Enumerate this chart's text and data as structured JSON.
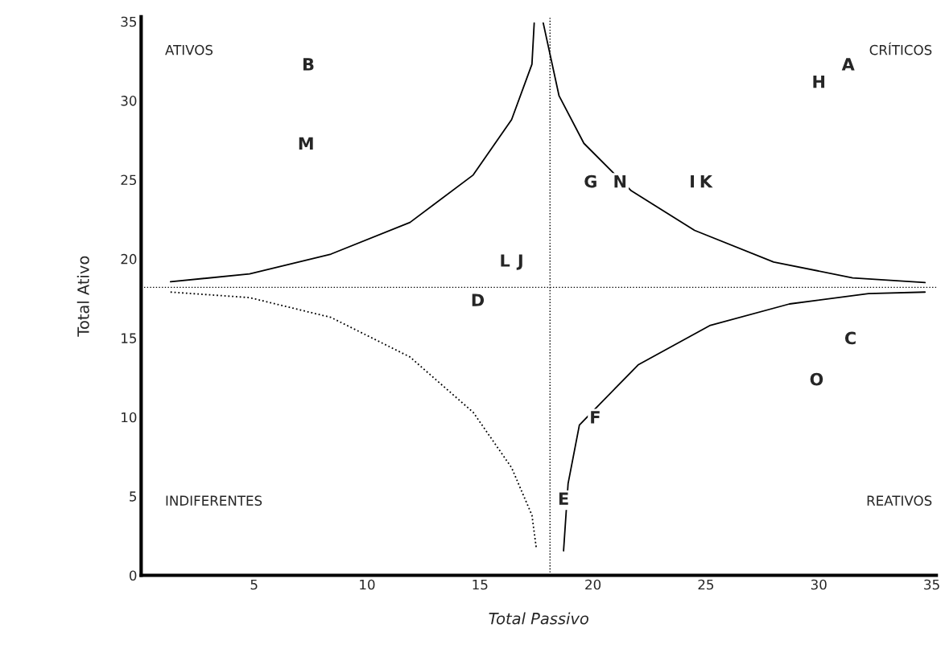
{
  "chart_data": {
    "type": "line",
    "xlabel": "Total Passivo",
    "ylabel": "Total Ativo",
    "xlim": [
      0,
      35.2
    ],
    "ylim": [
      0,
      35.3
    ],
    "xticks": [
      5,
      10,
      15,
      20,
      25,
      30,
      35
    ],
    "yticks": [
      0,
      5,
      10,
      15,
      20,
      25,
      30,
      35
    ],
    "grid": false,
    "legend": false,
    "series": [
      {
        "color": "#000000",
        "line_style": "solid",
        "x": [
          1.3,
          4.8,
          8.4,
          11.9,
          14.7,
          16.4,
          17.3,
          17.4
        ],
        "values": [
          18.55,
          19.05,
          20.3,
          22.3,
          25.3,
          28.8,
          32.3,
          34.9
        ]
      },
      {
        "color": "#000000",
        "line_style": "solid",
        "x": [
          17.8,
          18.5,
          19.6,
          21.7,
          24.5,
          28,
          31.5,
          34.7
        ],
        "values": [
          34.9,
          30.3,
          27.3,
          24.3,
          21.8,
          19.8,
          18.8,
          18.5
        ]
      },
      {
        "color": "#000000",
        "line_style": "solid",
        "x": [
          18.7,
          18.9,
          19.4,
          22,
          25.2,
          28.7,
          32.2,
          34.7
        ],
        "values": [
          1.55,
          5.8,
          9.5,
          13.3,
          15.8,
          17.15,
          17.8,
          17.9
        ]
      },
      {
        "color": "#000000",
        "line_style": "dotted",
        "x": [
          1.3,
          4.8,
          8.4,
          11.9,
          14.7,
          16.4,
          17.3,
          17.5
        ],
        "values": [
          17.9,
          17.55,
          16.3,
          13.8,
          10.3,
          6.8,
          3.8,
          1.65
        ]
      }
    ],
    "ref_lines": [
      {
        "axis": "x",
        "value": 18.1,
        "line_style": "dotted",
        "color": "#000000"
      },
      {
        "axis": "y",
        "value": 18.2,
        "line_style": "dotted",
        "color": "#000000"
      }
    ],
    "annotations": [
      "ATIVOS",
      "CRÍTICOS",
      "INDIFERENTES",
      "REATIVOS",
      {
        "text": "A",
        "x": 31.3,
        "y": 32.2
      },
      {
        "text": "B",
        "x": 7.4,
        "y": 32.2
      },
      {
        "text": "C",
        "x": 31.4,
        "y": 14.9
      },
      {
        "text": "D",
        "x": 14.9,
        "y": 17.3
      },
      {
        "text": "E",
        "x": 18.7,
        "y": 4.75
      },
      {
        "text": "F",
        "x": 20.1,
        "y": 9.9
      },
      {
        "text": "G",
        "x": 19.9,
        "y": 24.8
      },
      {
        "text": "H",
        "x": 30.0,
        "y": 31.1
      },
      {
        "text": "I",
        "x": 24.4,
        "y": 24.8
      },
      {
        "text": "J",
        "x": 16.8,
        "y": 19.8
      },
      {
        "text": "K",
        "x": 25.0,
        "y": 24.8
      },
      {
        "text": "L",
        "x": 16.1,
        "y": 19.8
      },
      {
        "text": "M",
        "x": 7.3,
        "y": 27.2
      },
      {
        "text": "N",
        "x": 21.2,
        "y": 24.8
      },
      {
        "text": "O",
        "x": 29.9,
        "y": 12.3
      }
    ]
  }
}
